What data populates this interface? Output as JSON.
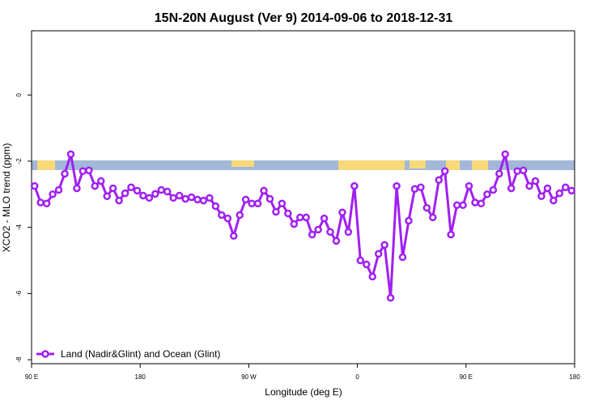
{
  "chart_data": {
    "type": "line",
    "title": "15N-20N August (Ver 9)   2014-09-06 to 2018-12-31",
    "xlabel": "Longitude (deg E)",
    "ylabel": "XCO2 - MLO trend (ppm)",
    "x": [
      92.5,
      97.5,
      102.5,
      107.5,
      112.5,
      117.5,
      122.5,
      127.5,
      132.5,
      137.5,
      142.5,
      147.5,
      152.5,
      157.5,
      162.5,
      167.5,
      172.5,
      177.5,
      182.5,
      187.5,
      192.5,
      197.5,
      202.5,
      207.5,
      212.5,
      217.5,
      222.5,
      227.5,
      232.5,
      237.5,
      242.5,
      247.5,
      252.5,
      257.5,
      262.5,
      267.5,
      272.5,
      277.5,
      282.5,
      287.5,
      292.5,
      297.5,
      302.5,
      307.5,
      312.5,
      317.5,
      322.5,
      327.5,
      332.5,
      337.5,
      342.5,
      347.5,
      352.5,
      357.5,
      362.5,
      367.5,
      372.5,
      377.5,
      382.5,
      387.5,
      392.5,
      397.5,
      402.5,
      407.5,
      412.5,
      417.5,
      422.5,
      427.5,
      432.5,
      437.5,
      442.5,
      447.5,
      452.5,
      457.5,
      462.5,
      467.5,
      472.5,
      477.5,
      482.5,
      487.5,
      492.5,
      497.5,
      502.5,
      507.5,
      512.5,
      517.5,
      522.5,
      527.5,
      532.5,
      537.5
    ],
    "series": [
      {
        "name": "Land (Nadir&Glint) and Ocean (Glint)",
        "color": "#a020f0",
        "values": [
          -2.75,
          -3.25,
          -3.28,
          -3.0,
          -2.87,
          -2.38,
          -1.79,
          -2.82,
          -2.3,
          -2.28,
          -2.75,
          -2.6,
          -3.06,
          -2.82,
          -3.19,
          -2.97,
          -2.79,
          -2.89,
          -3.04,
          -3.11,
          -2.99,
          -2.87,
          -2.92,
          -3.11,
          -3.04,
          -3.14,
          -3.09,
          -3.16,
          -3.19,
          -3.11,
          -3.36,
          -3.63,
          -3.73,
          -4.26,
          -3.63,
          -3.16,
          -3.28,
          -3.28,
          -2.89,
          -3.14,
          -3.53,
          -3.28,
          -3.58,
          -3.9,
          -3.7,
          -3.7,
          -4.22,
          -4.07,
          -3.73,
          -4.14,
          -4.41,
          -3.55,
          -4.14,
          -2.75,
          -5.0,
          -5.12,
          -5.49,
          -4.8,
          -4.53,
          -6.13,
          -2.75,
          -4.9,
          -3.8,
          -2.84,
          -2.79,
          -3.41,
          -3.7,
          -2.57,
          -2.3,
          -4.22,
          -3.33,
          -3.33,
          -2.75,
          -3.25,
          -3.28,
          -3.0,
          -2.87,
          -2.38,
          -1.79,
          -2.82,
          -2.3,
          -2.28,
          -2.75,
          -2.6,
          -3.06,
          -2.82,
          -3.19,
          -2.97,
          -2.79,
          -2.89
        ]
      }
    ],
    "xlim": [
      90,
      540
    ],
    "xticks": [
      {
        "value": 90,
        "label": "90 E"
      },
      {
        "value": 180,
        "label": "180"
      },
      {
        "value": 270,
        "label": "90 W"
      },
      {
        "value": 360,
        "label": "0"
      },
      {
        "value": 450,
        "label": "90 E"
      },
      {
        "value": 540,
        "label": "180"
      }
    ],
    "ylim": [
      -8.12,
      1.94
    ],
    "yticks": [
      0,
      -2,
      -4,
      -6,
      -8
    ],
    "legend": "bottom-left"
  }
}
